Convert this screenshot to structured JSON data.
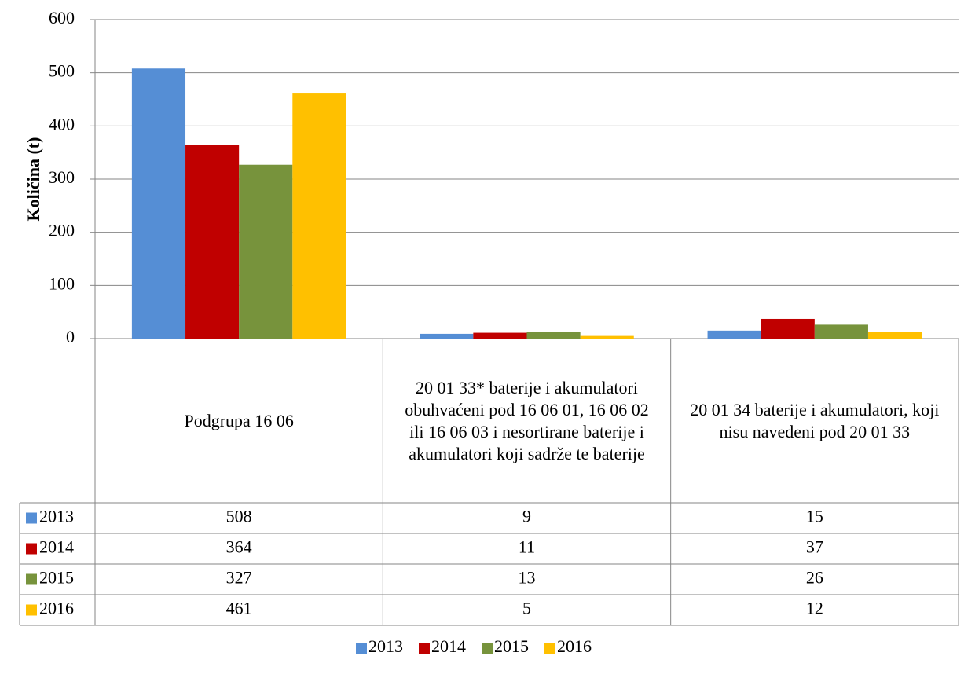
{
  "chart_data": {
    "type": "bar",
    "y_label": "Količina (t)",
    "categories": [
      "Podgrupa 16 06",
      "20 01 33* baterije i akumulatori obuhvaćeni pod 16 06 01, 16 06 02 ili 16 06 03 i nesortirane baterije i akumulatori koji sadrže te baterije",
      "20 01 34 baterije i akumulatori, koji nisu navedeni pod 20 01 33"
    ],
    "series": [
      {
        "name": "2013",
        "color": "#558ed5",
        "values": [
          508,
          9,
          15
        ]
      },
      {
        "name": "2014",
        "color": "#c00000",
        "values": [
          364,
          11,
          37
        ]
      },
      {
        "name": "2015",
        "color": "#77933c",
        "values": [
          327,
          13,
          26
        ]
      },
      {
        "name": "2016",
        "color": "#ffc000",
        "values": [
          461,
          5,
          12
        ]
      }
    ],
    "ylim": [
      0,
      600
    ],
    "yticks": [
      0,
      100,
      200,
      300,
      400,
      500,
      600
    ],
    "grid": true,
    "legend": "bottom"
  }
}
